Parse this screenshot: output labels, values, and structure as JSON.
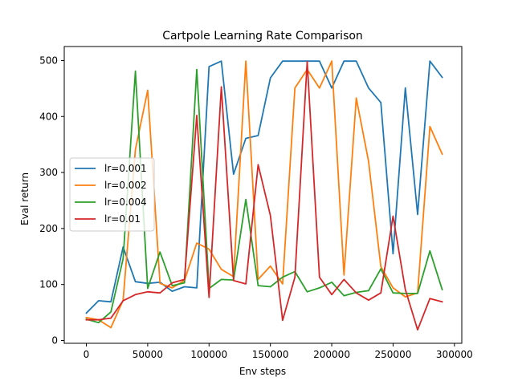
{
  "chart_data": {
    "type": "line",
    "title": "Cartpole Learning Rate Comparison",
    "xlabel": "Env steps",
    "ylabel": "Eval return",
    "xlim": [
      -18000,
      306000
    ],
    "ylim": [
      -5,
      525
    ],
    "xticks": [
      0,
      50000,
      100000,
      150000,
      200000,
      250000,
      300000
    ],
    "xtick_labels": [
      "0",
      "50000",
      "100000",
      "150000",
      "200000",
      "250000",
      "300000"
    ],
    "yticks": [
      0,
      100,
      200,
      300,
      400,
      500
    ],
    "ytick_labels": [
      "0",
      "100",
      "200",
      "300",
      "400",
      "500"
    ],
    "legend_position": "center-left",
    "x": [
      0,
      10000,
      20000,
      30000,
      40000,
      50000,
      60000,
      70000,
      80000,
      90000,
      100000,
      110000,
      120000,
      130000,
      140000,
      150000,
      160000,
      170000,
      180000,
      190000,
      200000,
      210000,
      220000,
      230000,
      240000,
      250000,
      260000,
      270000,
      280000,
      290000
    ],
    "series": [
      {
        "name": "lr=0.001",
        "color": "#1f77b4",
        "values": [
          49,
          71,
          69,
          167,
          105,
          102,
          104,
          88,
          96,
          94,
          489,
          499,
          297,
          361,
          366,
          469,
          499,
          499,
          499,
          499,
          451,
          499,
          499,
          451,
          425,
          155,
          451,
          225,
          499,
          470
        ]
      },
      {
        "name": "lr=0.002",
        "color": "#ff7f0e",
        "values": [
          41,
          37,
          23,
          72,
          341,
          447,
          102,
          94,
          107,
          174,
          163,
          127,
          114,
          499,
          109,
          133,
          101,
          451,
          484,
          451,
          499,
          117,
          433,
          320,
          132,
          94,
          78,
          85,
          382,
          333
        ]
      },
      {
        "name": "lr=0.004",
        "color": "#2ca02c",
        "values": [
          38,
          32,
          51,
          146,
          481,
          93,
          158,
          98,
          103,
          484,
          93,
          109,
          108,
          252,
          98,
          96,
          113,
          123,
          87,
          94,
          104,
          80,
          86,
          89,
          128,
          85,
          84,
          84,
          160,
          91
        ]
      },
      {
        "name": "lr=0.01",
        "color": "#d62728",
        "values": [
          37,
          37,
          40,
          71,
          82,
          87,
          85,
          103,
          109,
          402,
          77,
          453,
          107,
          101,
          314,
          223,
          36,
          113,
          498,
          113,
          82,
          109,
          85,
          72,
          85,
          222,
          91,
          19,
          75,
          69
        ]
      }
    ]
  }
}
